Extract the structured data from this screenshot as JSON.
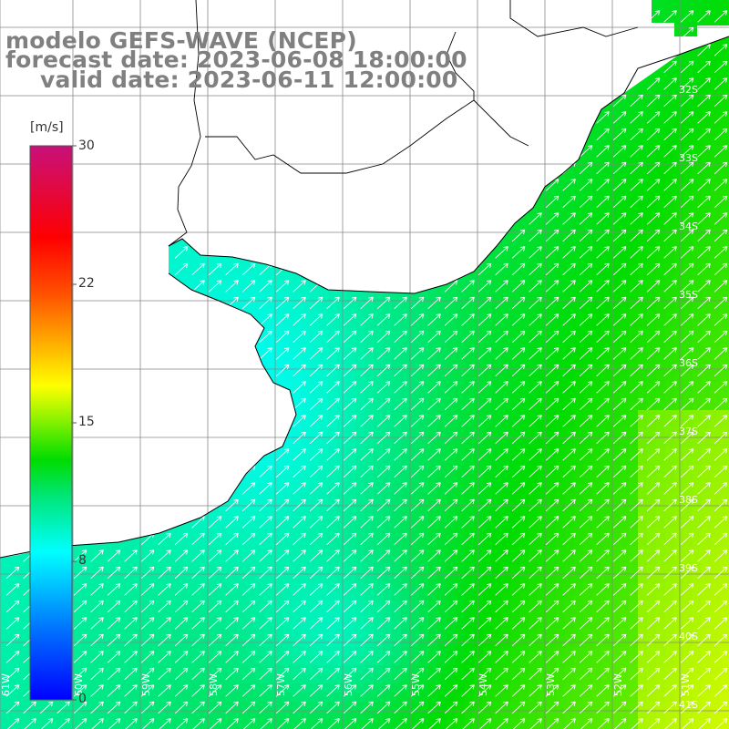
{
  "title": {
    "line1": "modelo GEFS-WAVE (NCEP)",
    "line2": "forecast date: 2023-06-08 18:00:00",
    "line3": "valid date: 2023-06-11 12:00:00"
  },
  "colorbar": {
    "unit": "m/s",
    "ticks": [
      "30",
      "22",
      "15",
      "8",
      "0"
    ],
    "range": [
      0,
      30
    ],
    "colors": [
      "#0000ff",
      "#00c8ff",
      "#00ffff",
      "#00e57a",
      "#00dd00",
      "#7ff000",
      "#ffff00",
      "#ff9900",
      "#ff5000",
      "#ff0000",
      "#ff1080",
      "#c8107a"
    ]
  },
  "map": {
    "region": "South Atlantic coast – Uruguay / Río de la Plata / Buenos Aires",
    "lat_labels": [
      "32S",
      "33S",
      "34S",
      "35S",
      "36S",
      "37S",
      "38S",
      "39S",
      "40S",
      "41S"
    ],
    "lon_labels": [
      "61W",
      "60W",
      "59W",
      "58W",
      "57W",
      "56W",
      "55W",
      "54W",
      "53W",
      "52W",
      "51W"
    ],
    "lon_range": [
      -61.5,
      -50.5
    ],
    "lat_range": [
      -41.3,
      -31.0
    ],
    "land_color": "#ffffff",
    "arrow_color": "#ffffff",
    "grid_color": "#888888"
  },
  "wind_field": {
    "variable": "10 m wind speed",
    "typical_speed_ms": [
      8,
      13
    ],
    "direction": "from south-west (arrows pointing north-east)"
  }
}
